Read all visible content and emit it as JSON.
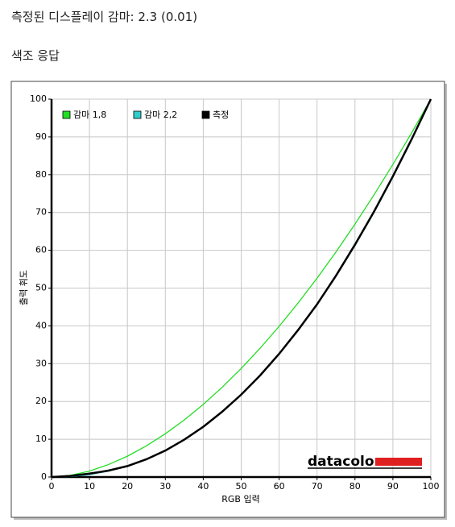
{
  "header": {
    "title": "측정된 디스플레이 감마: 2.3 (0.01)",
    "subtitle": "색조 응답"
  },
  "chart_data": {
    "type": "line",
    "xlabel": "RGB 입력",
    "ylabel": "출력 휘도",
    "logo": "datacolor",
    "x": [
      0,
      5,
      10,
      15,
      20,
      25,
      30,
      35,
      40,
      45,
      50,
      55,
      60,
      65,
      70,
      75,
      80,
      85,
      90,
      95,
      100
    ],
    "series": [
      {
        "name": "감마 1,8",
        "color": "#22dd22",
        "values": [
          0,
          0.46,
          1.58,
          3.29,
          5.52,
          8.25,
          11.45,
          15.11,
          19.22,
          23.76,
          28.72,
          34.09,
          39.87,
          46.05,
          52.62,
          59.58,
          66.92,
          74.64,
          82.72,
          91.18,
          100
        ]
      },
      {
        "name": "감마 2,2",
        "color": "#33cccc",
        "values": [
          0,
          0.14,
          0.63,
          1.54,
          2.9,
          4.74,
          7.07,
          9.93,
          13.32,
          17.26,
          21.76,
          26.84,
          32.5,
          38.76,
          45.63,
          53.1,
          61.21,
          69.94,
          79.3,
          89.33,
          100
        ]
      },
      {
        "name": "측정",
        "color": "#000000",
        "values": [
          0,
          0.3,
          0.9,
          1.7,
          2.9,
          4.7,
          7.0,
          9.9,
          13.3,
          17.3,
          21.8,
          26.9,
          32.6,
          38.9,
          45.7,
          53.3,
          61.5,
          70.2,
          79.6,
          89.5,
          100
        ]
      }
    ],
    "xlim": [
      0,
      100
    ],
    "ylim": [
      0,
      100
    ],
    "xticks": [
      0,
      10,
      20,
      30,
      40,
      50,
      60,
      70,
      80,
      90,
      100
    ],
    "yticks": [
      0,
      10,
      20,
      30,
      40,
      50,
      60,
      70,
      80,
      90,
      100
    ],
    "grid": true
  }
}
